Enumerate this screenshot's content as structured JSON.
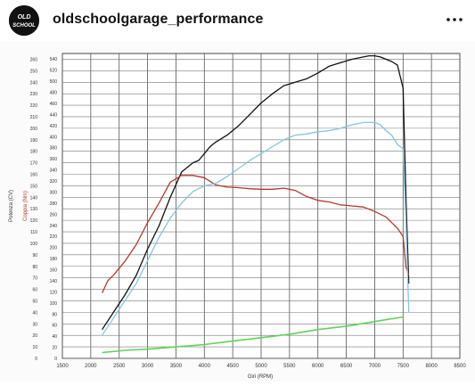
{
  "post": {
    "username": "oldschoolgarage_performance",
    "avatar_text_top": "OLD",
    "avatar_text_bottom": "SCHOOL",
    "more_icon": "more-horizontal-icon"
  },
  "chart_data": {
    "type": "line",
    "xlabel": "Giri (RPM)",
    "ylabel_power": "Potenza (CV)",
    "ylabel_torque": "Coppia (Nm)",
    "xlim": [
      1500,
      8500
    ],
    "x_ticks": [
      "1500",
      "2000",
      "2500",
      "3000",
      "3500",
      "4000",
      "4500",
      "5000",
      "5500",
      "6000",
      "6500",
      "7000",
      "7500",
      "8000",
      "8500"
    ],
    "power_ylim": [
      0,
      265
    ],
    "power_ticks": [
      "0",
      "10",
      "20",
      "30",
      "40",
      "50",
      "60",
      "70",
      "80",
      "90",
      "100",
      "110",
      "120",
      "130",
      "140",
      "150",
      "160",
      "170",
      "180",
      "190",
      "200",
      "210",
      "220",
      "230",
      "240",
      "250",
      "260"
    ],
    "torque_ylim": [
      0,
      550
    ],
    "torque_ticks": [
      "0",
      "20",
      "40",
      "60",
      "80",
      "100",
      "120",
      "140",
      "160",
      "180",
      "200",
      "220",
      "240",
      "260",
      "280",
      "300",
      "320",
      "340",
      "360",
      "380",
      "400",
      "420",
      "440",
      "460",
      "480",
      "500",
      "520",
      "540"
    ],
    "grid": true,
    "colors": {
      "power": "#111111",
      "torque_red": "#b03a2e",
      "torque_blue": "#86c5dc",
      "loss": "#5fd35a"
    },
    "series": [
      {
        "name": "",
        "axis": "power",
        "color": "#111111",
        "x": [
          2200,
          2400,
          2600,
          2800,
          3000,
          3200,
          3400,
          3600,
          3800,
          3900,
          4000,
          4100,
          4200,
          4400,
          4600,
          4800,
          5000,
          5200,
          5400,
          5600,
          5800,
          6000,
          6200,
          6400,
          6600,
          6800,
          6900,
          7000,
          7100,
          7200,
          7300,
          7400,
          7500,
          7550,
          7600
        ],
        "y": [
          25,
          40,
          55,
          72,
          95,
          115,
          140,
          162,
          170,
          172,
          178,
          184,
          188,
          194,
          202,
          212,
          222,
          230,
          237,
          240,
          243,
          248,
          254,
          257,
          260,
          262,
          263,
          263,
          262,
          260,
          258,
          255,
          235,
          140,
          65
        ]
      },
      {
        "name": "",
        "axis": "torque",
        "color": "#b03a2e",
        "x": [
          2200,
          2300,
          2400,
          2600,
          2800,
          3000,
          3200,
          3400,
          3600,
          3800,
          4000,
          4200,
          4400,
          4600,
          4800,
          5000,
          5200,
          5400,
          5600,
          5800,
          6000,
          6200,
          6400,
          6600,
          6800,
          7000,
          7200,
          7300,
          7400,
          7500,
          7550,
          7600
        ],
        "y": [
          118,
          140,
          150,
          175,
          205,
          245,
          280,
          318,
          330,
          330,
          326,
          313,
          309,
          308,
          306,
          305,
          305,
          307,
          303,
          292,
          285,
          282,
          277,
          275,
          273,
          265,
          255,
          245,
          235,
          220,
          165,
          150
        ]
      },
      {
        "name": "",
        "axis": "power",
        "color": "#86c5dc",
        "x": [
          2200,
          2400,
          2600,
          2800,
          3000,
          3200,
          3400,
          3600,
          3800,
          4000,
          4200,
          4400,
          4600,
          4800,
          5000,
          5200,
          5400,
          5600,
          5800,
          6000,
          6200,
          6400,
          6600,
          6800,
          7000,
          7100,
          7200,
          7300,
          7400,
          7500,
          7550,
          7600
        ],
        "y": [
          20,
          35,
          50,
          65,
          85,
          105,
          122,
          135,
          145,
          150,
          152,
          158,
          165,
          172,
          178,
          184,
          190,
          194,
          195,
          197,
          198,
          200,
          203,
          205,
          205,
          203,
          198,
          194,
          186,
          182,
          120,
          40
        ]
      },
      {
        "name": "",
        "axis": "power",
        "color": "#5fd35a",
        "x": [
          2200,
          2600,
          3000,
          3500,
          4000,
          4500,
          5000,
          5500,
          6000,
          6500,
          7000,
          7500
        ],
        "y": [
          5,
          7,
          8,
          10,
          12,
          15,
          18,
          21,
          25,
          28,
          32,
          36
        ]
      }
    ]
  }
}
